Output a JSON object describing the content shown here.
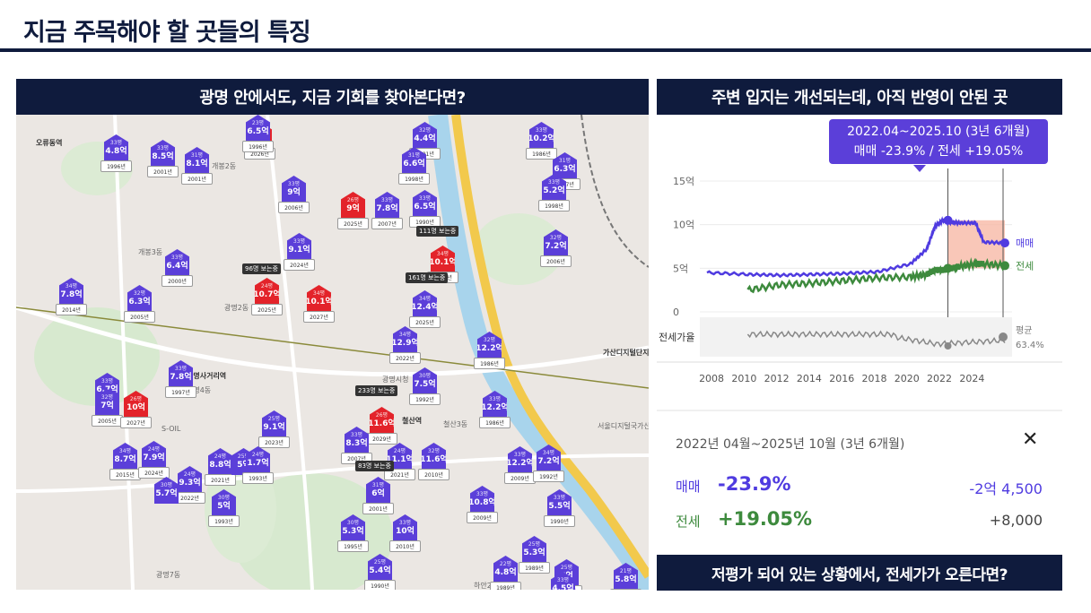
{
  "slide": {
    "title": "지금 주목해야 할 곳들의 특징"
  },
  "map_panel": {
    "heading": "광명 안에서도, 지금 기회를 찾아본다면?",
    "markers": [
      {
        "py": "33평",
        "price": "4.8억",
        "year": "1996년",
        "color": "blue"
      },
      {
        "py": "33평",
        "price": "8.5억",
        "year": "2001년",
        "color": "blue"
      },
      {
        "py": "31평",
        "price": "8.1억",
        "year": "2001년",
        "color": "blue"
      },
      {
        "py": "34평",
        "price": "8.2억",
        "year": "2026년",
        "color": "red"
      },
      {
        "py": "23평",
        "price": "6.5억",
        "year": "1996년",
        "color": "blue"
      },
      {
        "py": "32평",
        "price": "4.4억",
        "year": "2001년",
        "color": "blue"
      },
      {
        "py": "31평",
        "price": "6.6억",
        "year": "1998년",
        "color": "blue"
      },
      {
        "py": "33평",
        "price": "10.2억",
        "year": "1986년",
        "color": "blue"
      },
      {
        "py": "31평",
        "price": "6.3억",
        "year": "1987년",
        "color": "blue"
      },
      {
        "py": "33평",
        "price": "5.2억",
        "year": "1998년",
        "color": "blue"
      },
      {
        "py": "33평",
        "price": "9억",
        "year": "2006년",
        "color": "blue"
      },
      {
        "py": "26평",
        "price": "9억",
        "year": "2025년",
        "color": "red"
      },
      {
        "py": "33평",
        "price": "7.8억",
        "year": "2007년",
        "color": "blue"
      },
      {
        "py": "33평",
        "price": "6.5억",
        "year": "1990년",
        "color": "blue"
      },
      {
        "py": "33평",
        "price": "9.1억",
        "year": "2024년",
        "color": "blue"
      },
      {
        "py": "34평",
        "price": "10.1억",
        "year": "2026년",
        "color": "red"
      },
      {
        "py": "32평",
        "price": "7.2억",
        "year": "2006년",
        "color": "blue"
      },
      {
        "py": "33평",
        "price": "6.4억",
        "year": "2000년",
        "color": "blue"
      },
      {
        "py": "34평",
        "price": "7.8억",
        "year": "2014년",
        "color": "blue"
      },
      {
        "py": "32평",
        "price": "6.3억",
        "year": "2005년",
        "color": "blue"
      },
      {
        "py": "24평",
        "price": "10.7억",
        "year": "2025년",
        "color": "red"
      },
      {
        "py": "34평",
        "price": "10.1억",
        "year": "2027년",
        "color": "red"
      },
      {
        "py": "34평",
        "price": "12.4억",
        "year": "2025년",
        "color": "blue"
      },
      {
        "py": "34평",
        "price": "12.9억",
        "year": "2022년",
        "color": "blue"
      },
      {
        "py": "32평",
        "price": "12.2억",
        "year": "1986년",
        "color": "blue"
      },
      {
        "py": "33평",
        "price": "7.8억",
        "year": "1997년",
        "color": "blue"
      },
      {
        "py": "33평",
        "price": "6.7억",
        "year": "",
        "color": "blue"
      },
      {
        "py": "32평",
        "price": "7억",
        "year": "2005년",
        "color": "blue"
      },
      {
        "py": "26평",
        "price": "10억",
        "year": "2027년",
        "color": "red"
      },
      {
        "py": "30평",
        "price": "7.5억",
        "year": "1992년",
        "color": "blue"
      },
      {
        "py": "33평",
        "price": "12.2억",
        "year": "1986년",
        "color": "blue"
      },
      {
        "py": "26평",
        "price": "11.6억",
        "year": "2029년",
        "color": "red"
      },
      {
        "py": "25평",
        "price": "9.1억",
        "year": "2023년",
        "color": "blue"
      },
      {
        "py": "34평",
        "price": "8.7억",
        "year": "2015년",
        "color": "blue"
      },
      {
        "py": "24평",
        "price": "7.9억",
        "year": "2024년",
        "color": "blue"
      },
      {
        "py": "24평",
        "price": "8.8억",
        "year": "2021년",
        "color": "blue"
      },
      {
        "py": "25평",
        "price": "5억",
        "year": "",
        "color": "blue"
      },
      {
        "py": "24평",
        "price": "1.7억",
        "year": "1993년",
        "color": "blue"
      },
      {
        "py": "33평",
        "price": "8.3억",
        "year": "2007년",
        "color": "blue"
      },
      {
        "py": "24평",
        "price": "11.1억",
        "year": "2021년",
        "color": "blue"
      },
      {
        "py": "32평",
        "price": "11.6억",
        "year": "2010년",
        "color": "blue"
      },
      {
        "py": "33평",
        "price": "12.2억",
        "year": "2009년",
        "color": "blue"
      },
      {
        "py": "34평",
        "price": "7.2억",
        "year": "1992년",
        "color": "blue"
      },
      {
        "py": "24평",
        "price": "9.3억",
        "year": "2022년",
        "color": "blue"
      },
      {
        "py": "30평",
        "price": "5.7억",
        "year": "",
        "color": "blue"
      },
      {
        "py": "30평",
        "price": "5억",
        "year": "1993년",
        "color": "blue"
      },
      {
        "py": "31평",
        "price": "6억",
        "year": "2001년",
        "color": "blue"
      },
      {
        "py": "33평",
        "price": "10.8억",
        "year": "2009년",
        "color": "blue"
      },
      {
        "py": "33평",
        "price": "5.5억",
        "year": "1990년",
        "color": "blue"
      },
      {
        "py": "30평",
        "price": "5.3억",
        "year": "1995년",
        "color": "blue"
      },
      {
        "py": "33평",
        "price": "10억",
        "year": "2010년",
        "color": "blue"
      },
      {
        "py": "25평",
        "price": "5.3억",
        "year": "1989년",
        "color": "blue"
      },
      {
        "py": "22평",
        "price": "4.8억",
        "year": "1989년",
        "color": "blue"
      },
      {
        "py": "25평",
        "price": "5.4억",
        "year": "1990년",
        "color": "blue"
      },
      {
        "py": "25평",
        "price": "6억",
        "year": "1990년",
        "color": "blue"
      },
      {
        "py": "33평",
        "price": "4.5억",
        "year": "1990년",
        "color": "blue"
      },
      {
        "py": "21평",
        "price": "5.8억",
        "year": "1990년",
        "color": "blue"
      }
    ],
    "tags": [
      "111명 보는중",
      "96명 보는중",
      "161명 보는중",
      "233명 보는중",
      "83명 보는중"
    ],
    "labels": [
      "오류동역",
      "개봉3동",
      "개봉2동",
      "광명2동",
      "광명4동",
      "광명사거리역",
      "철산역",
      "철산3동",
      "가산디지털단지역",
      "서울디지털국가산업단지",
      "광명7동",
      "하안2동",
      "광명시청",
      "S-OIL"
    ]
  },
  "chart_panel": {
    "heading": "주변 입지는 개선되는데, 아직 반영이 안된 곳",
    "tooltip_line1": "2022.04~2025.10 (3년 6개월)",
    "tooltip_line2": "매매 -23.9%  /  전세 +19.05%",
    "y_ticks": [
      "15억",
      "10억",
      "5억",
      "0"
    ],
    "x_ticks": [
      "2008",
      "2010",
      "2012",
      "2014",
      "2016",
      "2018",
      "2020",
      "2022",
      "2024"
    ],
    "lower_label": "전세가율",
    "avg_label": "평균",
    "avg_value": "63.4%",
    "series_label_sale": "매매",
    "series_label_jeonse": "전세",
    "info": {
      "range": "2022년 04월~2025년 10월 (3년 6개월)",
      "close": "✕",
      "sale_label": "매매",
      "sale_pct": "-23.9%",
      "sale_amount": "-2억 4,500",
      "jeonse_label": "전세",
      "jeonse_pct": "+19.05%",
      "jeonse_amount": "+8,000"
    }
  },
  "footer": {
    "heading": "저평가 되어 있는 상황에서, 전세가가 오른다면?"
  },
  "colors": {
    "navy": "#0f1b3d",
    "sale": "#4f3be0",
    "jeonse": "#3d8a3d",
    "marker_blue": "#5b3fd9",
    "marker_red": "#e3232a",
    "shade": "#f7b9a6"
  },
  "chart_data": {
    "type": "line",
    "x": [
      2007.5,
      2010,
      2012,
      2014,
      2016,
      2018,
      2020,
      2021,
      2021.5,
      2022,
      2022.3,
      2023,
      2024,
      2024.5,
      2025.8
    ],
    "series": [
      {
        "name": "매매",
        "values": [
          4.5,
          4.3,
          4.2,
          4.3,
          4.4,
          4.6,
          5.5,
          7.2,
          9.8,
          10.5,
          10.3,
          10.2,
          10.2,
          8.0,
          7.9
        ]
      },
      {
        "name": "전세",
        "values": [
          null,
          2.5,
          3.1,
          3.3,
          3.6,
          3.9,
          4.0,
          4.3,
          4.8,
          4.8,
          4.9,
          5.2,
          5.5,
          5.5,
          5.3
        ]
      }
    ],
    "ylim": [
      0,
      15
    ],
    "shaded_range": [
      2022.3,
      2025.8
    ]
  }
}
